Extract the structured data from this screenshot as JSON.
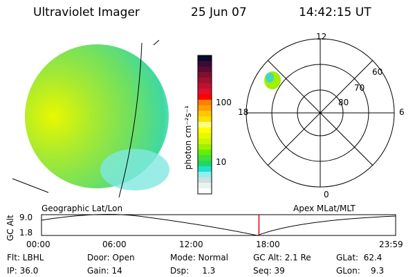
{
  "header": {
    "title": "Ultraviolet Imager",
    "date": "25 Jun 07",
    "time": "14:42:15 UT"
  },
  "colorbar": {
    "label": "photon cm⁻²s⁻¹",
    "ticks": [
      "100",
      "10"
    ],
    "colors": [
      "#0a0a30",
      "#3a0a30",
      "#5a0a35",
      "#80102f",
      "#a01030",
      "#c01030",
      "#e01030",
      "#ff0000",
      "#ff8000",
      "#ffa000",
      "#ffc800",
      "#ffe000",
      "#ffff80",
      "#ffff00",
      "#e8f800",
      "#c8f800",
      "#a0f000",
      "#60f000",
      "#40e040",
      "#20d860",
      "#20e0d0",
      "#90f0f0",
      "#d0e0e0",
      "#e8f4f0",
      "#ffffff"
    ]
  },
  "polar": {
    "mlt": [
      "12",
      "18",
      "6",
      "0"
    ],
    "mlat": [
      "60",
      "70",
      "80"
    ]
  },
  "timeline": {
    "left_label": "Geographic Lat/Lon",
    "right_label": "Apex MLat/MLT",
    "ylabel": "GC Alt",
    "yticks": [
      "9.0",
      "1.8"
    ],
    "xticks": [
      "00:00",
      "06:00",
      "12:00",
      "18:00",
      "23:59"
    ],
    "current_fraction": 0.614
  },
  "status": {
    "flt": "Flt: LBHL",
    "ip": "IP: 36.0",
    "door": "Door: Open",
    "gain": "Gain: 14",
    "mode": "Mode: Normal",
    "dsp": "Dsp:     1.3",
    "gcalt": "GC Alt: 2.1 Re",
    "seq": "Seq: 39",
    "glat": "GLat:  62.4",
    "glon": "GLon:    9.3"
  }
}
